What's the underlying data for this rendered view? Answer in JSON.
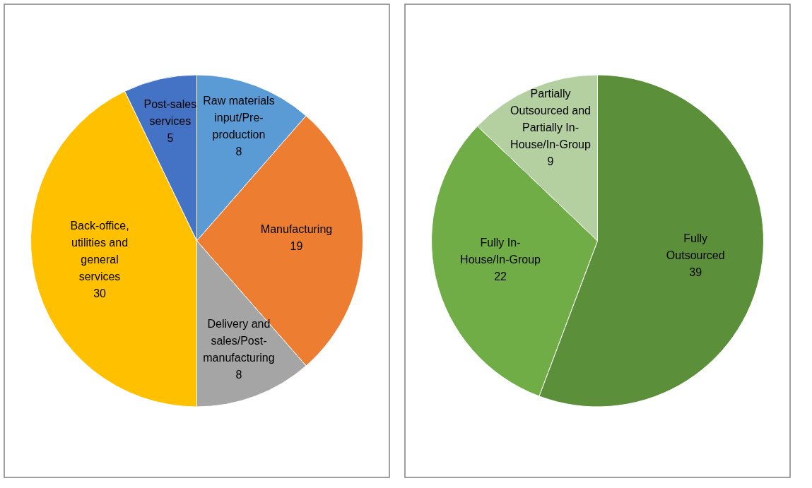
{
  "chart_data": [
    {
      "type": "pie",
      "categories": [
        "Raw materials input/Pre-production",
        "Manufacturing",
        "Delivery and sales/Post-manufacturing",
        "Back-office, utilities and general services",
        "Post-sales services"
      ],
      "values": [
        8,
        19,
        8,
        30,
        5
      ],
      "colors": [
        "#5b9bd5",
        "#ed7d31",
        "#a5a5a5",
        "#ffc000",
        "#4472c4"
      ],
      "data_labels": true,
      "legend": false
    },
    {
      "type": "pie",
      "categories": [
        "Fully Outsourced",
        "Fully In-House/In-Group",
        "Partially Outsourced and Partially In-House/In-Group"
      ],
      "values": [
        39,
        22,
        9
      ],
      "colors": [
        "#5b8f3a",
        "#70ad47",
        "#b4cfa0"
      ],
      "data_labels": true,
      "legend": false
    }
  ]
}
